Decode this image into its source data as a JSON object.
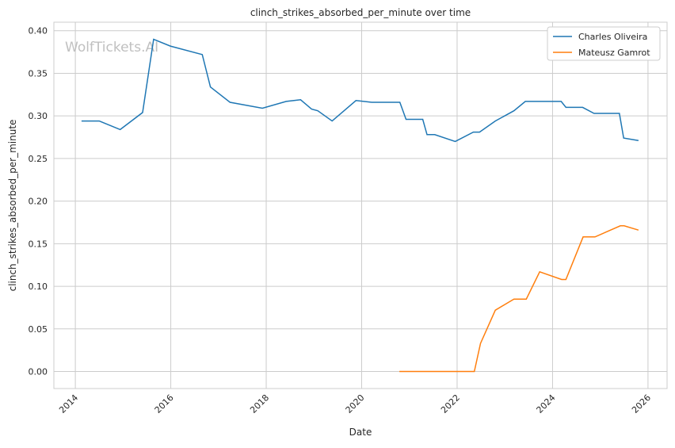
{
  "chart_data": {
    "type": "line",
    "title": "clinch_strikes_absorbed_per_minute over time",
    "xlabel": "Date",
    "ylabel": "clinch_strikes_absorbed_per_minute",
    "xlim": [
      2013.55,
      2026.4
    ],
    "ylim": [
      -0.02,
      0.41
    ],
    "x_ticks": [
      "2014",
      "2016",
      "2018",
      "2020",
      "2022",
      "2024",
      "2026"
    ],
    "x_tick_values": [
      2014,
      2016,
      2018,
      2020,
      2022,
      2024,
      2026
    ],
    "y_ticks": [
      "0.00",
      "0.05",
      "0.10",
      "0.15",
      "0.20",
      "0.25",
      "0.30",
      "0.35",
      "0.40"
    ],
    "y_tick_values": [
      0,
      0.05,
      0.1,
      0.15,
      0.2,
      0.25,
      0.3,
      0.35,
      0.4
    ],
    "grid": true,
    "legend_position": "top-right",
    "watermark": "WolfTickets.AI",
    "series": [
      {
        "name": "Charles Oliveira",
        "color": "#1f77b4",
        "x": [
          2014.13,
          2014.5,
          2014.94,
          2015.41,
          2015.64,
          2015.99,
          2016.66,
          2016.83,
          2017.24,
          2017.92,
          2018.42,
          2018.72,
          2018.95,
          2019.08,
          2019.38,
          2019.88,
          2020.21,
          2020.8,
          2020.93,
          2021.28,
          2021.37,
          2021.53,
          2021.96,
          2022.34,
          2022.47,
          2022.8,
          2023.19,
          2023.43,
          2024.18,
          2024.28,
          2024.63,
          2024.87,
          2025.4,
          2025.49,
          2025.8
        ],
        "y": [
          0.294,
          0.294,
          0.284,
          0.304,
          0.39,
          0.382,
          0.372,
          0.334,
          0.316,
          0.309,
          0.317,
          0.319,
          0.308,
          0.306,
          0.294,
          0.318,
          0.316,
          0.316,
          0.296,
          0.296,
          0.278,
          0.278,
          0.27,
          0.281,
          0.281,
          0.294,
          0.306,
          0.317,
          0.317,
          0.31,
          0.31,
          0.303,
          0.303,
          0.274,
          0.271
        ]
      },
      {
        "name": "Mateusz Gamrot",
        "color": "#ff7f0e",
        "x": [
          2020.79,
          2022.36,
          2022.49,
          2022.8,
          2023.19,
          2023.45,
          2023.73,
          2024.19,
          2024.28,
          2024.64,
          2024.89,
          2025.42,
          2025.5,
          2025.8
        ],
        "y": [
          0,
          0,
          0.033,
          0.072,
          0.085,
          0.085,
          0.117,
          0.108,
          0.108,
          0.158,
          0.158,
          0.171,
          0.171,
          0.166
        ]
      }
    ]
  }
}
